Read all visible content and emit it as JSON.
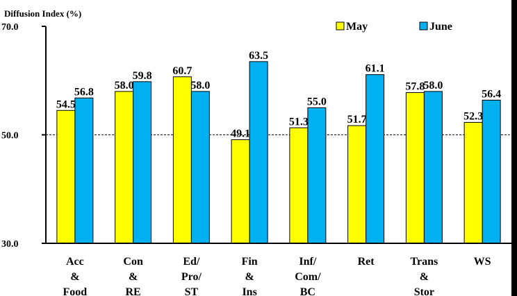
{
  "chart_data": {
    "type": "bar",
    "title": "",
    "ylabel": "Diffusion Index (%)",
    "xlabel": "",
    "ylim": [
      30,
      70
    ],
    "yticks": [
      "70.0",
      "50.0",
      "30.0"
    ],
    "reference_line": 50,
    "legend_position": "top-right",
    "categories": [
      [
        "Acc",
        "&",
        "Food"
      ],
      [
        "Con",
        "&",
        "RE"
      ],
      [
        "Ed/",
        "Pro/",
        "ST"
      ],
      [
        "Fin",
        "&",
        "Ins"
      ],
      [
        "Inf/",
        "Com/",
        "BC"
      ],
      [
        "Ret"
      ],
      [
        "Trans",
        "&",
        "Stor"
      ],
      [
        "WS"
      ]
    ],
    "series": [
      {
        "name": "May",
        "color": "#ffff00",
        "values": [
          54.5,
          58.0,
          60.7,
          49.1,
          51.3,
          51.7,
          57.8,
          52.3
        ],
        "labels": [
          "54.5",
          "58.0",
          "60.7",
          "49.1",
          "51.3",
          "51.7",
          "57.8",
          "52.3"
        ]
      },
      {
        "name": "June",
        "color": "#00b0f0",
        "values": [
          56.8,
          59.8,
          58.0,
          63.5,
          55.0,
          61.1,
          58.0,
          56.4
        ],
        "labels": [
          "56.8",
          "59.8",
          "58.0",
          "63.5",
          "55.0",
          "61.1",
          "58.0",
          "56.4"
        ]
      }
    ]
  }
}
